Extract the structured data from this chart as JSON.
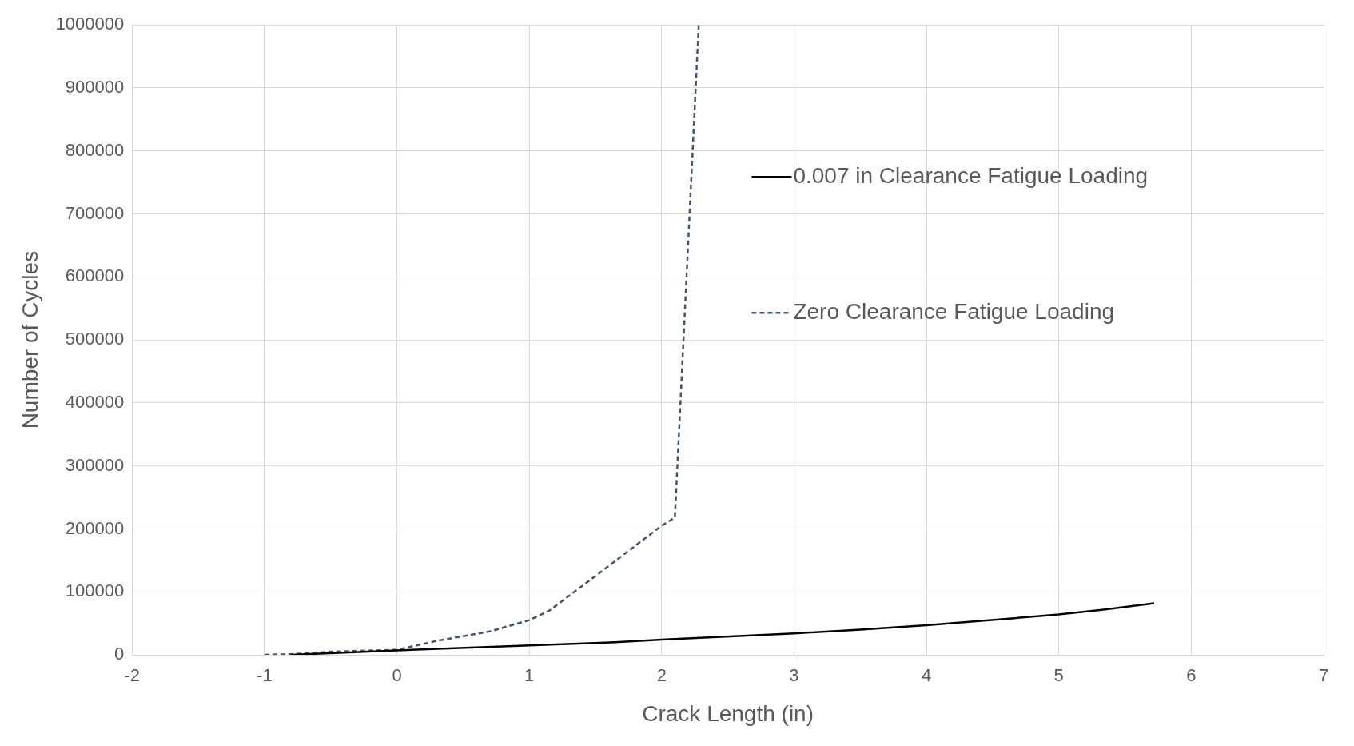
{
  "chart_data": {
    "type": "line",
    "xlabel": "Crack Length (in)",
    "ylabel": "Number of Cycles",
    "xlim": [
      -2,
      7
    ],
    "xticks": [
      -2,
      -1,
      0,
      1,
      2,
      3,
      4,
      5,
      6,
      7
    ],
    "ylim": [
      0,
      1000000
    ],
    "yticks": [
      0,
      100000,
      200000,
      300000,
      400000,
      500000,
      600000,
      700000,
      800000,
      900000,
      1000000
    ],
    "grid": true,
    "legend": "top right",
    "series": [
      {
        "name": "0.007 in Clearance Fatigue Loading",
        "color": "#000000",
        "line_style": "solid",
        "x": [
          -0.8,
          0,
          1,
          1.65,
          2,
          3,
          3.5,
          4,
          4.3,
          5,
          5.35,
          5.72
        ],
        "values": [
          0,
          7000,
          15000,
          20000,
          24000,
          34000,
          40000,
          47000,
          52000,
          64000,
          72000,
          82000
        ]
      },
      {
        "name": "Zero Clearance Fatigue Loading",
        "color": "#44546a",
        "line_style": "dashed",
        "x": [
          -1,
          -0.8,
          -0.5,
          0,
          0.3,
          0.7,
          1,
          1.15,
          1.5,
          2,
          2.1,
          2.28
        ],
        "values": [
          0,
          1000,
          5000,
          8000,
          22000,
          37000,
          55000,
          70000,
          125000,
          205000,
          218000,
          1000000
        ]
      }
    ]
  }
}
